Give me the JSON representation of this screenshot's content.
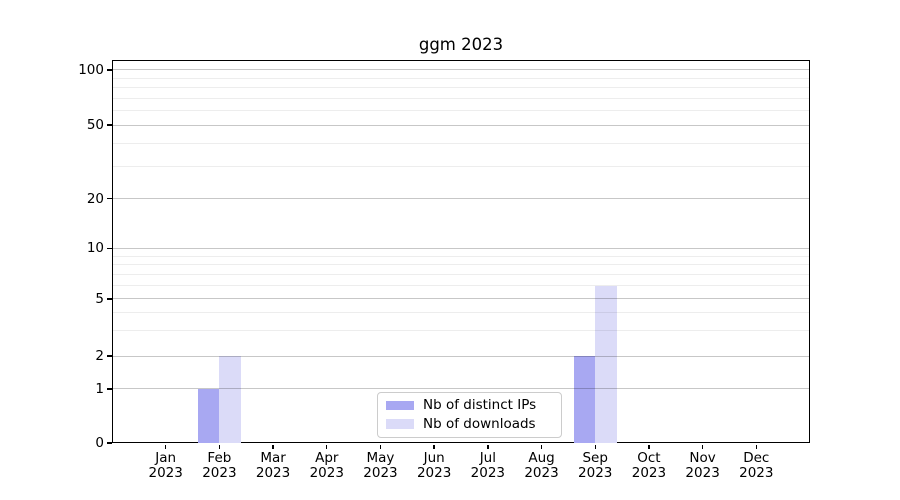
{
  "chart_data": {
    "type": "bar",
    "title": "ggm 2023",
    "categories": [
      "Jan",
      "Feb",
      "Mar",
      "Apr",
      "May",
      "Jun",
      "Jul",
      "Aug",
      "Sep",
      "Oct",
      "Nov",
      "Dec"
    ],
    "year": "2023",
    "series": [
      {
        "name": "Nb of distinct IPs",
        "color": "#a8a8f2",
        "values": [
          0,
          1,
          0,
          0,
          0,
          0,
          0,
          0,
          2,
          0,
          0,
          0
        ]
      },
      {
        "name": "Nb of downloads",
        "color": "#dbdbf8",
        "values": [
          0,
          2,
          0,
          0,
          0,
          0,
          0,
          0,
          6,
          0,
          0,
          0
        ]
      }
    ],
    "y_ticks": [
      0,
      1,
      2,
      5,
      10,
      20,
      50,
      100
    ],
    "y_minor_ticks": [
      3,
      4,
      6,
      7,
      8,
      9,
      30,
      40,
      60,
      70,
      80,
      90
    ],
    "ylim": [
      0,
      110
    ],
    "scale": "log-like",
    "scale_anchors": [
      [
        0,
        0
      ],
      [
        1,
        0.141
      ],
      [
        2,
        0.227
      ],
      [
        5,
        0.376
      ],
      [
        10,
        0.508
      ],
      [
        20,
        0.638
      ],
      [
        50,
        0.83
      ],
      [
        100,
        0.974
      ]
    ],
    "grid": "on",
    "legend_position": "lower center",
    "colors": {
      "axis": "#000000",
      "background": "#ffffff",
      "major_grid": "#c7c7c7",
      "minor_grid": "#ececec"
    }
  }
}
